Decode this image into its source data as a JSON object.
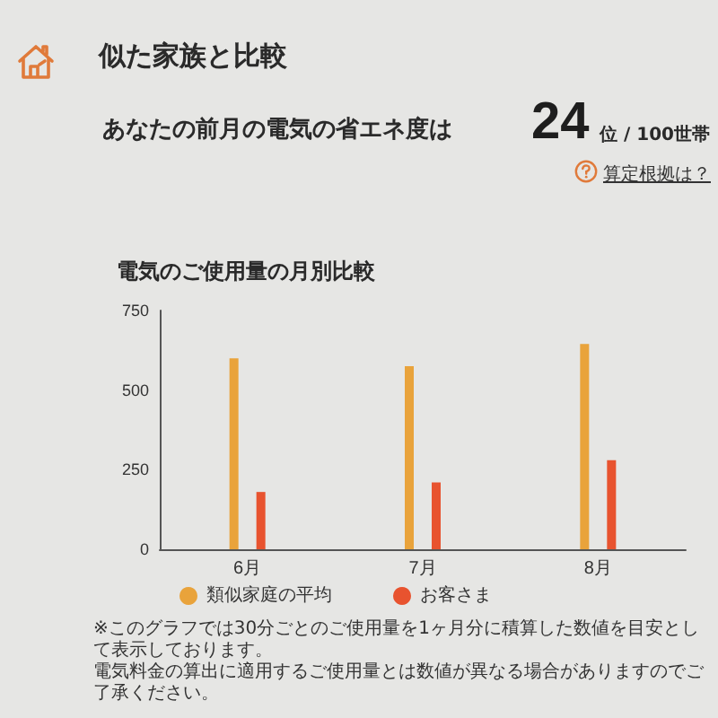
{
  "chart_data": {
    "type": "bar",
    "title": "似た家族と比較",
    "subtitle": "電気のご使用量の月別比較",
    "categories": [
      "6月",
      "7月",
      "8月"
    ],
    "series": [
      {
        "name": "類似家庭の平均",
        "color": "#e9a33b",
        "values": [
          600,
          575,
          645
        ]
      },
      {
        "name": "お客さま",
        "color": "#e8532f",
        "values": [
          180,
          210,
          280
        ]
      }
    ],
    "ylim": [
      0,
      750
    ],
    "yticks": [
      0,
      250,
      500,
      750
    ],
    "grid": false,
    "legend": "bottom left",
    "annotations": [
      "あなたの前月の電気の省エネ度は",
      "24",
      "位 / 100世帯",
      "算定根拠は？",
      "※このグラフでは30分ごとのご使用量を1ヶ月分に積算した数値を目安として表示しております。",
      "電気料金の算出に適用するご使用量とは数値が異なる場合がありますのでご了承ください。"
    ]
  }
}
